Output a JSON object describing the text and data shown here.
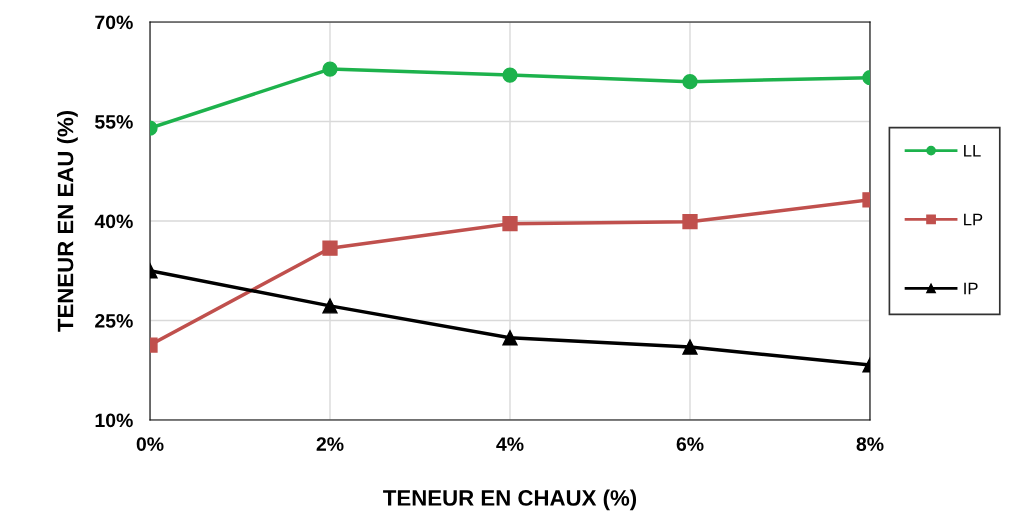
{
  "chart_data": {
    "type": "line",
    "xlabel": "TENEUR EN CHAUX (%)",
    "ylabel": "TENEUR EN EAU (%)",
    "x": [
      0,
      2,
      4,
      6,
      8
    ],
    "series": [
      {
        "name": "LL",
        "color": "#1db24c",
        "marker": "circle",
        "values": [
          54.0,
          62.9,
          62.0,
          61.0,
          61.6
        ]
      },
      {
        "name": "LP",
        "color": "#c0504d",
        "marker": "square",
        "values": [
          21.3,
          35.9,
          39.6,
          39.9,
          43.2
        ]
      },
      {
        "name": "IP",
        "color": "#000000",
        "marker": "triangle",
        "values": [
          32.5,
          27.2,
          22.4,
          21.0,
          18.3
        ]
      }
    ],
    "xlim": [
      0,
      8
    ],
    "xticks": [
      {
        "value": 0,
        "label": "0%"
      },
      {
        "value": 2,
        "label": "2%"
      },
      {
        "value": 4,
        "label": "4%"
      },
      {
        "value": 6,
        "label": "6%"
      },
      {
        "value": 8,
        "label": "8%"
      }
    ],
    "ylim": [
      10,
      70
    ],
    "yticks": [
      {
        "value": 10,
        "label": "10%"
      },
      {
        "value": 25,
        "label": "25%"
      },
      {
        "value": 40,
        "label": "40%"
      },
      {
        "value": 55,
        "label": "55%"
      },
      {
        "value": 70,
        "label": "70%"
      }
    ],
    "grid": true,
    "legend": "right",
    "line_style": "solid"
  }
}
